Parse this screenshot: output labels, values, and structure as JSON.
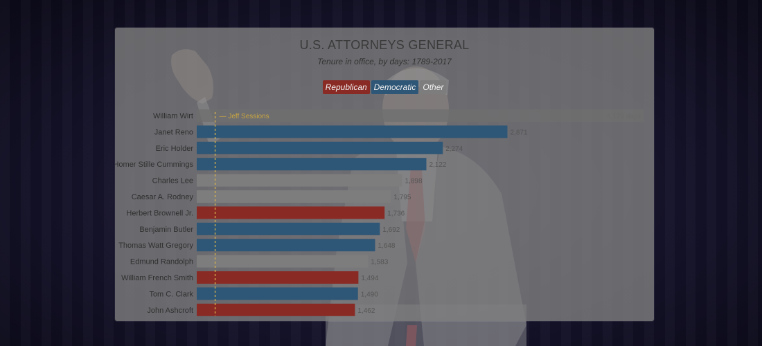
{
  "chart_data": {
    "type": "bar",
    "title": "U.S. ATTORNEYS GENERAL",
    "subtitle": "Tenure in office, by days: 1789-2017",
    "legend": [
      {
        "label": "Republican",
        "color": "#8a2a24"
      },
      {
        "label": "Democratic",
        "color": "#2e5676"
      },
      {
        "label": "Other",
        "color": "#7d7d7d"
      }
    ],
    "categories": [
      "William Wirt",
      "Janet Reno",
      "Eric Holder",
      "Homer Stille Cummings",
      "Charles Lee",
      "Caesar A. Rodney",
      "Herbert Brownell Jr.",
      "Benjamin Butler",
      "Thomas Watt Gregory",
      "Edmund Randolph",
      "William French Smith",
      "Tom C. Clark",
      "John Ashcroft"
    ],
    "values": [
      4129,
      2871,
      2274,
      2122,
      1898,
      1795,
      1736,
      1692,
      1648,
      1583,
      1494,
      1490,
      1462
    ],
    "value_labels": [
      "4,129 days",
      "2,871",
      "2,274",
      "2,122",
      "1,898",
      "1,795",
      "1,736",
      "1,692",
      "1,648",
      "1,583",
      "1,494",
      "1,490",
      "1,462"
    ],
    "parties": [
      "Other",
      "Democratic",
      "Democratic",
      "Democratic",
      "Other",
      "Other",
      "Republican",
      "Democratic",
      "Democratic",
      "Other",
      "Republican",
      "Democratic",
      "Republican"
    ],
    "xlim": [
      0,
      4129
    ],
    "annotation": {
      "label": "Jeff Sessions",
      "x": 170,
      "color": "#d9b44a"
    }
  }
}
